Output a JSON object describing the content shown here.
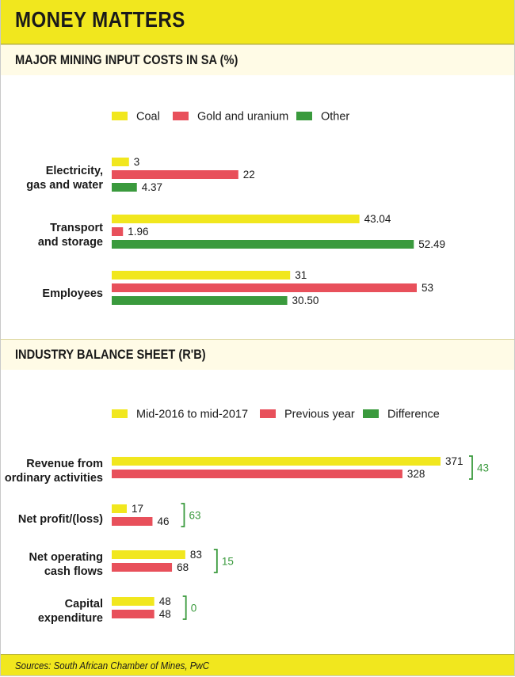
{
  "header": {
    "title": "MONEY MATTERS"
  },
  "footer": {
    "sources": "Sources: South African Chamber of Mines, PwC"
  },
  "colors": {
    "yellow": "#f1e71e",
    "red": "#e8505b",
    "green": "#3a9a3d",
    "bracket": "#3a9a3d"
  },
  "chart_data": [
    {
      "type": "bar",
      "orientation": "horizontal",
      "title": "MAJOR MINING INPUT COSTS IN SA (%)",
      "legend_position": "top",
      "categories": [
        "Electricity,\ngas and water",
        "Transport\nand storage",
        "Employees"
      ],
      "series": [
        {
          "name": "Coal",
          "color": "#f1e71e",
          "values": [
            3,
            43.04,
            31
          ],
          "labels": [
            "3",
            "43.04",
            "31"
          ]
        },
        {
          "name": "Gold and uranium",
          "color": "#e8505b",
          "values": [
            22,
            1.96,
            53
          ],
          "labels": [
            "22",
            "1.96",
            "53"
          ]
        },
        {
          "name": "Other",
          "color": "#3a9a3d",
          "values": [
            4.37,
            52.49,
            30.5
          ],
          "labels": [
            "4.37",
            "52.49",
            "30.50"
          ]
        }
      ],
      "xlim": [
        0,
        53
      ]
    },
    {
      "type": "bar",
      "orientation": "horizontal",
      "title": "INDUSTRY BALANCE SHEET (R'B)",
      "legend_position": "top",
      "categories": [
        "Revenue from\nordinary activities",
        "Net profit/(loss)",
        "Net operating\ncash flows",
        "Capital\nexpenditure"
      ],
      "series": [
        {
          "name": "Mid-2016 to mid-2017",
          "color": "#f1e71e",
          "values": [
            371,
            17,
            83,
            48
          ],
          "labels": [
            "371",
            "17",
            "83",
            "48"
          ]
        },
        {
          "name": "Previous year",
          "color": "#e8505b",
          "values": [
            328,
            46,
            68,
            48
          ],
          "labels": [
            "328",
            "46",
            "68",
            "48"
          ]
        },
        {
          "name": "Difference",
          "color": "#3a9a3d",
          "values": [
            43,
            63,
            15,
            0
          ],
          "labels": [
            "43",
            "63",
            "15",
            "0"
          ]
        }
      ],
      "xlim": [
        0,
        371
      ]
    }
  ]
}
